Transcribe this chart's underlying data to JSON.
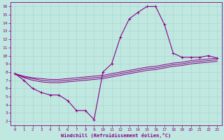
{
  "xlabel": "Windchill (Refroidissement éolien,°C)",
  "bg_color": "#c0e8e0",
  "grid_color": "#b0d8d0",
  "line_color": "#880088",
  "xlim": [
    -0.5,
    23.5
  ],
  "ylim": [
    1.5,
    16.5
  ],
  "xticks": [
    0,
    1,
    2,
    3,
    4,
    5,
    6,
    7,
    8,
    9,
    10,
    11,
    12,
    13,
    14,
    15,
    16,
    17,
    18,
    19,
    20,
    21,
    22,
    23
  ],
  "yticks": [
    2,
    3,
    4,
    5,
    6,
    7,
    8,
    9,
    10,
    11,
    12,
    13,
    14,
    15,
    16
  ],
  "curve1_x": [
    0,
    1,
    2,
    3,
    4,
    5,
    6,
    7,
    8,
    9,
    10,
    11,
    12,
    13,
    14,
    15,
    16,
    17,
    18,
    19,
    20,
    21,
    22,
    23
  ],
  "curve1_y": [
    7.8,
    7.0,
    6.0,
    5.5,
    5.2,
    5.2,
    4.5,
    3.3,
    3.3,
    2.2,
    8.0,
    9.0,
    12.3,
    14.5,
    15.3,
    16.0,
    16.0,
    13.8,
    10.3,
    9.8,
    9.8,
    9.8,
    10.0,
    9.7
  ],
  "curve2_x": [
    0,
    1,
    2,
    3,
    4,
    5,
    6,
    7,
    8,
    9,
    10,
    11,
    12,
    13,
    14,
    15,
    16,
    17,
    18,
    19,
    20,
    21,
    22,
    23
  ],
  "curve2_y": [
    7.8,
    7.5,
    7.3,
    7.2,
    7.1,
    7.1,
    7.2,
    7.3,
    7.4,
    7.5,
    7.6,
    7.8,
    8.0,
    8.2,
    8.4,
    8.6,
    8.7,
    8.9,
    9.1,
    9.2,
    9.4,
    9.5,
    9.6,
    9.7
  ],
  "curve3_x": [
    0,
    1,
    2,
    3,
    4,
    5,
    6,
    7,
    8,
    9,
    10,
    11,
    12,
    13,
    14,
    15,
    16,
    17,
    18,
    19,
    20,
    21,
    22,
    23
  ],
  "curve3_y": [
    7.8,
    7.4,
    7.2,
    7.0,
    6.9,
    6.9,
    7.0,
    7.1,
    7.2,
    7.3,
    7.4,
    7.6,
    7.8,
    8.0,
    8.2,
    8.4,
    8.5,
    8.7,
    8.9,
    9.0,
    9.2,
    9.3,
    9.4,
    9.5
  ],
  "curve4_x": [
    0,
    1,
    2,
    3,
    4,
    5,
    6,
    7,
    8,
    9,
    10,
    11,
    12,
    13,
    14,
    15,
    16,
    17,
    18,
    19,
    20,
    21,
    22,
    23
  ],
  "curve4_y": [
    7.8,
    7.3,
    7.0,
    6.8,
    6.7,
    6.7,
    6.8,
    6.9,
    7.0,
    7.1,
    7.2,
    7.4,
    7.6,
    7.8,
    8.0,
    8.2,
    8.3,
    8.5,
    8.7,
    8.8,
    9.0,
    9.1,
    9.2,
    9.3
  ]
}
